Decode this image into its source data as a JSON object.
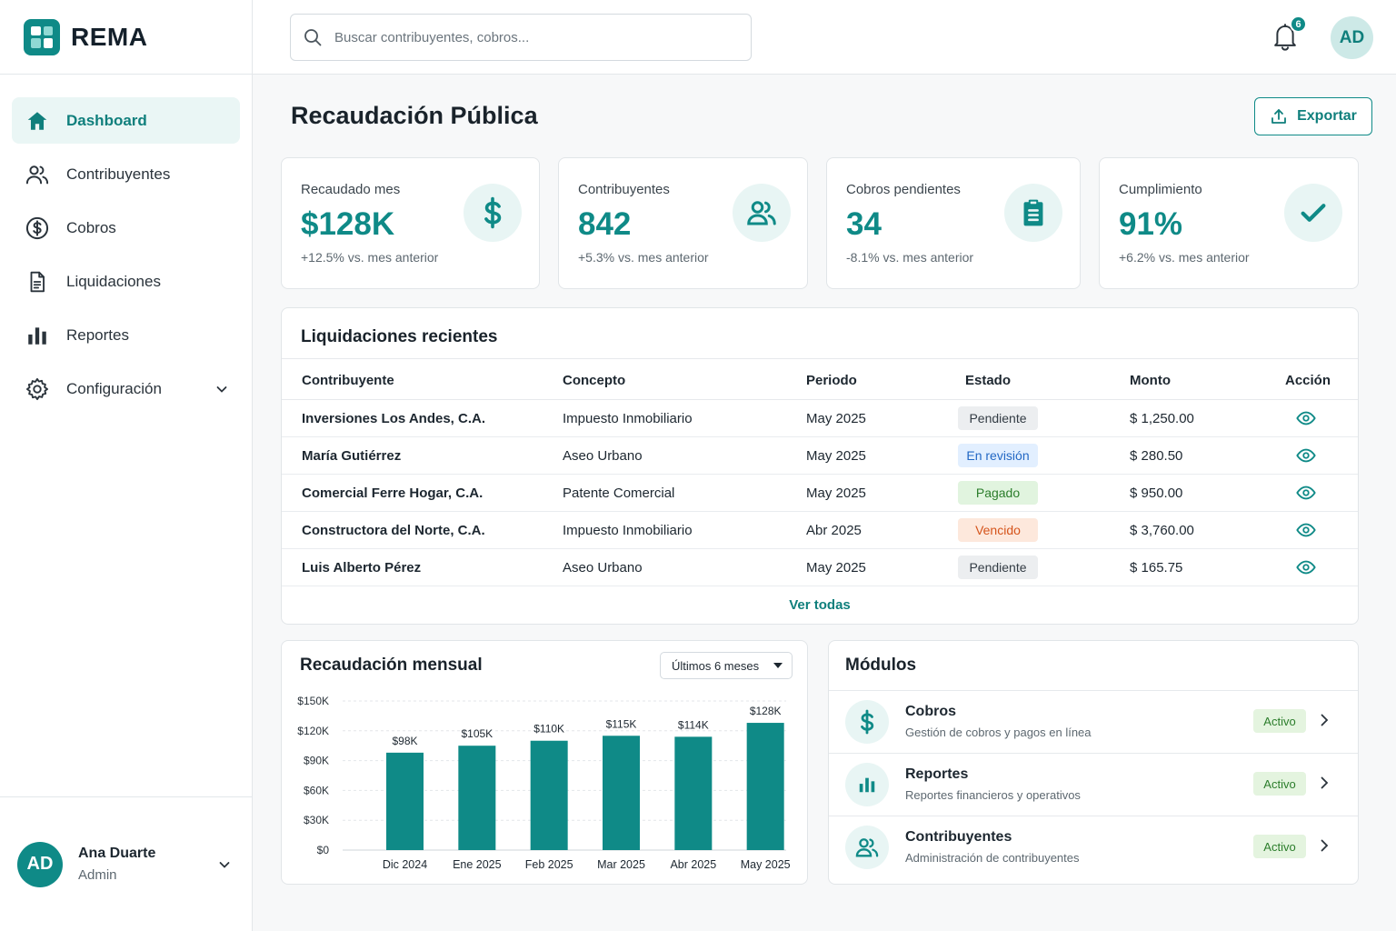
{
  "brand": {
    "name": "REMA"
  },
  "sidebar": {
    "items": [
      {
        "label": "Dashboard",
        "icon": "home-icon"
      },
      {
        "label": "Contribuyentes",
        "icon": "users-icon"
      },
      {
        "label": "Cobros",
        "icon": "dollar-circle-icon"
      },
      {
        "label": "Liquidaciones",
        "icon": "document-icon"
      },
      {
        "label": "Reportes",
        "icon": "bar-chart-icon"
      },
      {
        "label": "Configuración",
        "icon": "gear-icon"
      }
    ],
    "user": {
      "initials": "AD",
      "name": "Ana Duarte",
      "role": "Admin"
    }
  },
  "topbar": {
    "search_placeholder": "Buscar contribuyentes, cobros...",
    "notifications_count": "6",
    "avatar_initials": "AD"
  },
  "header": {
    "title": "Recaudación Pública",
    "export_label": "Exportar"
  },
  "kpis": [
    {
      "label": "Recaudado mes",
      "value": "$128K",
      "delta": "+12.5% vs. mes anterior",
      "icon": "dollar-icon"
    },
    {
      "label": "Contribuyentes",
      "value": "842",
      "delta": "+5.3% vs. mes anterior",
      "icon": "users-icon"
    },
    {
      "label": "Cobros pendientes",
      "value": "34",
      "delta": "-8.1% vs. mes anterior",
      "icon": "clipboard-icon"
    },
    {
      "label": "Cumplimiento",
      "value": "91%",
      "delta": "+6.2% vs. mes anterior",
      "icon": "check-icon"
    }
  ],
  "liquidaciones": {
    "title": "Liquidaciones recientes",
    "columns": [
      "Contribuyente",
      "Concepto",
      "Periodo",
      "Estado",
      "Monto",
      "Acción"
    ],
    "rows": [
      {
        "contribuyente": "Inversiones Los Andes, C.A.",
        "concepto": "Impuesto Inmobiliario",
        "periodo": "May 2025",
        "estado": "Pendiente",
        "monto": "$ 1,250.00"
      },
      {
        "contribuyente": "María Gutiérrez",
        "concepto": "Aseo Urbano",
        "periodo": "May 2025",
        "estado": "En revisión",
        "monto": "$ 280.50"
      },
      {
        "contribuyente": "Comercial Ferre Hogar, C.A.",
        "concepto": "Patente Comercial",
        "periodo": "May 2025",
        "estado": "Pagado",
        "monto": "$ 950.00"
      },
      {
        "contribuyente": "Constructora del Norte, C.A.",
        "concepto": "Impuesto Inmobiliario",
        "periodo": "Abr 2025",
        "estado": "Vencido",
        "monto": "$ 3,760.00"
      },
      {
        "contribuyente": "Luis Alberto Pérez",
        "concepto": "Aseo Urbano",
        "periodo": "May 2025",
        "estado": "Pendiente",
        "monto": "$ 165.75"
      }
    ],
    "view_all": "Ver todas"
  },
  "chart_card": {
    "title": "Recaudación mensual",
    "range_label": "Últimos 6 meses"
  },
  "chart_data": {
    "type": "bar",
    "categories": [
      "Dic 2024",
      "Ene 2025",
      "Feb 2025",
      "Mar 2025",
      "Abr 2025",
      "May 2025"
    ],
    "values": [
      98,
      105,
      110,
      115,
      114,
      128
    ],
    "data_labels": [
      "$98K",
      "$105K",
      "$110K",
      "$115K",
      "$114K",
      "$128K"
    ],
    "yticks": [
      0,
      30,
      60,
      90,
      120,
      150
    ],
    "ytick_labels": [
      "$0",
      "$30K",
      "$60K",
      "$90K",
      "$120K",
      "$150K"
    ],
    "ylim": [
      0,
      150
    ],
    "grid": true,
    "color": "#0f8a87"
  },
  "modules": {
    "title": "Módulos",
    "items": [
      {
        "name": "Cobros",
        "desc": "Gestión de cobros y pagos en línea",
        "status": "Activo",
        "icon": "dollar-icon"
      },
      {
        "name": "Reportes",
        "desc": "Reportes financieros y operativos",
        "status": "Activo",
        "icon": "bar-chart-icon"
      },
      {
        "name": "Contribuyentes",
        "desc": "Administración de contribuyentes",
        "status": "Activo",
        "icon": "users-icon"
      }
    ]
  },
  "colors": {
    "accent": "#0f8a87",
    "accent_light": "#e8f5f4"
  }
}
